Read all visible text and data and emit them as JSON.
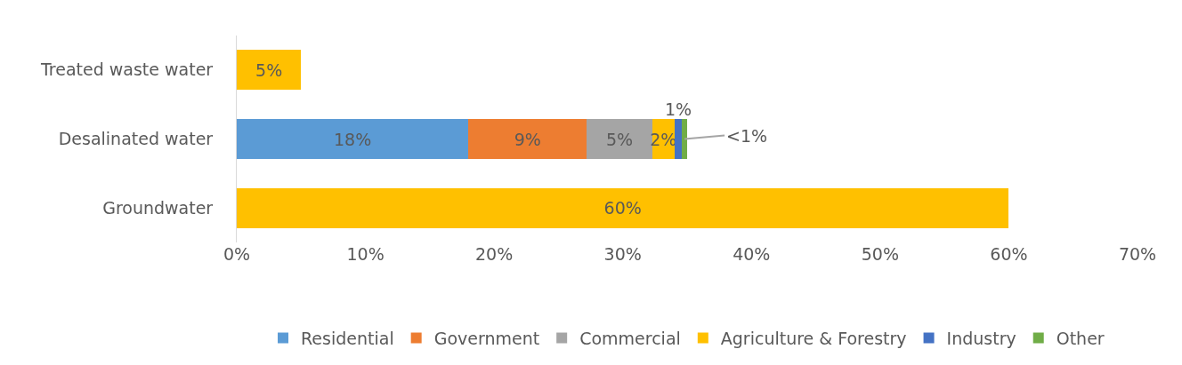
{
  "chart_data": {
    "type": "bar",
    "orientation": "horizontal",
    "stacked": true,
    "categories": [
      "Treated waste water",
      "Desalinated water",
      "Groundwater"
    ],
    "series": [
      {
        "name": "Residential",
        "color": "#5b9bd5",
        "values": [
          null,
          18,
          null
        ],
        "value_labels": [
          null,
          "18%",
          null
        ]
      },
      {
        "name": "Government",
        "color": "#ed7d31",
        "values": [
          null,
          9.2,
          null
        ],
        "value_labels": [
          null,
          "9%",
          null
        ]
      },
      {
        "name": "Commercial",
        "color": "#a5a5a5",
        "values": [
          null,
          5.1,
          null
        ],
        "value_labels": [
          null,
          "5%",
          null
        ]
      },
      {
        "name": "Agriculture & Forestry",
        "color": "#ffc000",
        "values": [
          5,
          1.7,
          60
        ],
        "value_labels": [
          "5%",
          "2%",
          "60%"
        ]
      },
      {
        "name": "Industry",
        "color": "#4472c4",
        "values": [
          null,
          0.6,
          null
        ],
        "value_labels": [
          null,
          "1%",
          null
        ]
      },
      {
        "name": "Other",
        "color": "#70ad47",
        "values": [
          null,
          0.4,
          null
        ],
        "value_labels": [
          null,
          "<1%",
          null
        ]
      }
    ],
    "xlim": [
      0,
      70
    ],
    "xticks": [
      {
        "value": 0,
        "label": "0%"
      },
      {
        "value": 10,
        "label": "10%"
      },
      {
        "value": 20,
        "label": "20%"
      },
      {
        "value": 30,
        "label": "30%"
      },
      {
        "value": 40,
        "label": "40%"
      },
      {
        "value": 50,
        "label": "50%"
      },
      {
        "value": 60,
        "label": "60%"
      },
      {
        "value": 70,
        "label": "70%"
      }
    ],
    "legend": "bottom"
  }
}
